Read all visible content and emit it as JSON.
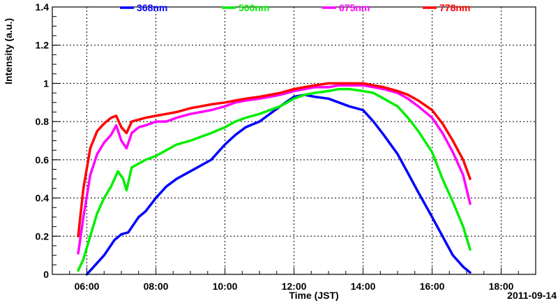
{
  "chart_data": {
    "type": "line",
    "xlabel": "Time (JST)",
    "ylabel": "Intensity (a.u.)",
    "date_label": "2011-09-14",
    "xlim": [
      5.0,
      19.0
    ],
    "ylim": [
      0,
      1.4
    ],
    "x_ticks": [
      {
        "value": 6,
        "label": "06:00"
      },
      {
        "value": 8,
        "label": "08:00"
      },
      {
        "value": 10,
        "label": "10:00"
      },
      {
        "value": 12,
        "label": "12:00"
      },
      {
        "value": 14,
        "label": "14:00"
      },
      {
        "value": 16,
        "label": "16:00"
      },
      {
        "value": 18,
        "label": "18:00"
      }
    ],
    "y_ticks": [
      {
        "value": 0,
        "label": "0"
      },
      {
        "value": 0.2,
        "label": "0.2"
      },
      {
        "value": 0.4,
        "label": "0.4"
      },
      {
        "value": 0.6,
        "label": "0.6"
      },
      {
        "value": 0.8,
        "label": "0.8"
      },
      {
        "value": 1.0,
        "label": "1"
      },
      {
        "value": 1.2,
        "label": "1.2"
      },
      {
        "value": 1.4,
        "label": "1.4"
      }
    ],
    "grid": true,
    "legend_position": "top",
    "series": [
      {
        "name": "368nm",
        "color": "#0000ff",
        "x": [
          6.0,
          6.2,
          6.5,
          6.8,
          7.0,
          7.2,
          7.5,
          7.7,
          8.0,
          8.3,
          8.6,
          9.0,
          9.3,
          9.6,
          10.0,
          10.3,
          10.6,
          11.0,
          11.3,
          11.6,
          12.0,
          12.3,
          12.6,
          13.0,
          13.3,
          13.6,
          14.0,
          14.3,
          14.6,
          15.0,
          15.3,
          15.6,
          16.0,
          16.3,
          16.6,
          16.9,
          17.1
        ],
        "y": [
          0.0,
          0.04,
          0.1,
          0.18,
          0.21,
          0.22,
          0.3,
          0.33,
          0.4,
          0.46,
          0.5,
          0.54,
          0.57,
          0.6,
          0.68,
          0.73,
          0.77,
          0.8,
          0.84,
          0.88,
          0.93,
          0.94,
          0.93,
          0.92,
          0.9,
          0.88,
          0.86,
          0.8,
          0.73,
          0.63,
          0.53,
          0.43,
          0.3,
          0.2,
          0.1,
          0.04,
          0.01
        ]
      },
      {
        "name": "500nm",
        "color": "#00ee00",
        "x": [
          5.75,
          5.9,
          6.1,
          6.3,
          6.5,
          6.7,
          6.9,
          7.05,
          7.15,
          7.3,
          7.5,
          7.7,
          8.0,
          8.3,
          8.6,
          9.0,
          9.3,
          9.6,
          10.0,
          10.3,
          10.6,
          11.0,
          11.3,
          11.6,
          12.0,
          12.3,
          12.6,
          13.0,
          13.3,
          13.6,
          14.0,
          14.3,
          14.6,
          15.0,
          15.3,
          15.6,
          16.0,
          16.3,
          16.6,
          16.9,
          17.1
        ],
        "y": [
          0.02,
          0.08,
          0.2,
          0.32,
          0.4,
          0.46,
          0.54,
          0.5,
          0.44,
          0.56,
          0.58,
          0.6,
          0.62,
          0.65,
          0.68,
          0.7,
          0.72,
          0.74,
          0.77,
          0.8,
          0.82,
          0.84,
          0.86,
          0.88,
          0.92,
          0.94,
          0.95,
          0.96,
          0.97,
          0.97,
          0.96,
          0.95,
          0.92,
          0.88,
          0.82,
          0.75,
          0.64,
          0.5,
          0.38,
          0.25,
          0.13
        ]
      },
      {
        "name": "675nm",
        "color": "#ff00ff",
        "x": [
          5.75,
          5.9,
          6.1,
          6.3,
          6.5,
          6.7,
          6.85,
          7.0,
          7.15,
          7.3,
          7.5,
          7.7,
          8.0,
          8.3,
          8.6,
          9.0,
          9.3,
          9.6,
          10.0,
          10.3,
          10.6,
          11.0,
          11.3,
          11.6,
          12.0,
          12.3,
          12.6,
          13.0,
          13.3,
          13.6,
          14.0,
          14.3,
          14.6,
          15.0,
          15.3,
          15.6,
          16.0,
          16.3,
          16.6,
          16.9,
          17.1
        ],
        "y": [
          0.11,
          0.3,
          0.52,
          0.63,
          0.69,
          0.73,
          0.78,
          0.7,
          0.66,
          0.74,
          0.77,
          0.78,
          0.8,
          0.8,
          0.82,
          0.84,
          0.85,
          0.86,
          0.88,
          0.9,
          0.91,
          0.92,
          0.93,
          0.94,
          0.96,
          0.97,
          0.98,
          0.98,
          0.99,
          0.99,
          0.99,
          0.98,
          0.97,
          0.95,
          0.92,
          0.88,
          0.82,
          0.74,
          0.64,
          0.52,
          0.37
        ]
      },
      {
        "name": "778nm",
        "color": "#ff0000",
        "x": [
          5.75,
          5.9,
          6.1,
          6.3,
          6.5,
          6.7,
          6.85,
          7.0,
          7.15,
          7.3,
          7.5,
          7.7,
          8.0,
          8.3,
          8.6,
          9.0,
          9.3,
          9.6,
          10.0,
          10.3,
          10.6,
          11.0,
          11.3,
          11.6,
          12.0,
          12.3,
          12.6,
          13.0,
          13.3,
          13.6,
          14.0,
          14.3,
          14.6,
          15.0,
          15.3,
          15.6,
          16.0,
          16.3,
          16.6,
          16.9,
          17.1
        ],
        "y": [
          0.2,
          0.45,
          0.66,
          0.75,
          0.79,
          0.82,
          0.83,
          0.77,
          0.74,
          0.8,
          0.81,
          0.82,
          0.83,
          0.84,
          0.85,
          0.87,
          0.88,
          0.89,
          0.9,
          0.91,
          0.92,
          0.93,
          0.94,
          0.95,
          0.97,
          0.98,
          0.99,
          1.0,
          1.0,
          1.0,
          1.0,
          0.99,
          0.98,
          0.96,
          0.94,
          0.91,
          0.86,
          0.79,
          0.7,
          0.6,
          0.5
        ]
      }
    ]
  }
}
